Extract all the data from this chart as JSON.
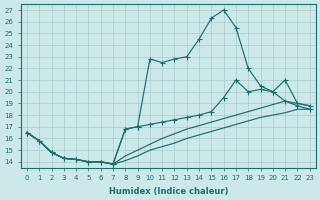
{
  "xlabel": "Humidex (Indice chaleur)",
  "bg_color": "#cce8e8",
  "grid_color": "#aacccc",
  "line_color": "#1a6e6e",
  "xlim": [
    -0.5,
    23.5
  ],
  "ylim": [
    13.5,
    27.5
  ],
  "xticks": [
    0,
    1,
    2,
    3,
    4,
    5,
    6,
    7,
    8,
    9,
    10,
    11,
    12,
    13,
    14,
    15,
    16,
    17,
    18,
    19,
    20,
    21,
    22,
    23
  ],
  "yticks": [
    14,
    15,
    16,
    17,
    18,
    19,
    20,
    21,
    22,
    23,
    24,
    25,
    26,
    27
  ],
  "line1_x": [
    0,
    1,
    2,
    3,
    4,
    5,
    6,
    7,
    8,
    9,
    10,
    11,
    12,
    13,
    14,
    15,
    16,
    17,
    18,
    19,
    20,
    21,
    22,
    23
  ],
  "line1_y": [
    16.5,
    15.8,
    14.8,
    14.3,
    14.2,
    14.0,
    14.0,
    13.8,
    16.8,
    17.0,
    22.8,
    22.5,
    22.8,
    23.0,
    24.5,
    26.3,
    27.0,
    25.5,
    22.0,
    20.5,
    20.0,
    21.0,
    19.0,
    18.8
  ],
  "line2_x": [
    0,
    1,
    2,
    3,
    4,
    5,
    6,
    7,
    8,
    9,
    10,
    11,
    12,
    13,
    14,
    15,
    16,
    17,
    18,
    19,
    20,
    21,
    22,
    23
  ],
  "line2_y": [
    16.5,
    15.8,
    14.8,
    14.3,
    14.2,
    14.0,
    14.0,
    13.8,
    16.8,
    17.0,
    17.2,
    17.4,
    17.6,
    17.8,
    18.0,
    18.3,
    19.5,
    21.0,
    20.0,
    20.2,
    20.0,
    19.2,
    18.8,
    18.5
  ],
  "line3_x": [
    0,
    1,
    2,
    3,
    4,
    5,
    6,
    7,
    8,
    9,
    10,
    11,
    12,
    13,
    14,
    15,
    16,
    17,
    18,
    19,
    20,
    21,
    22,
    23
  ],
  "line3_y": [
    16.5,
    15.8,
    14.8,
    14.3,
    14.2,
    14.0,
    14.0,
    13.8,
    14.1,
    14.5,
    15.0,
    15.3,
    15.6,
    16.0,
    16.3,
    16.6,
    16.9,
    17.2,
    17.5,
    17.8,
    18.0,
    18.2,
    18.5,
    18.5
  ],
  "line4_x": [
    0,
    1,
    2,
    3,
    4,
    5,
    6,
    7,
    8,
    9,
    10,
    11,
    12,
    13,
    14,
    15,
    16,
    17,
    18,
    19,
    20,
    21,
    22,
    23
  ],
  "line4_y": [
    16.5,
    15.8,
    14.8,
    14.3,
    14.2,
    14.0,
    14.0,
    13.8,
    14.5,
    15.0,
    15.5,
    16.0,
    16.4,
    16.8,
    17.1,
    17.4,
    17.7,
    18.0,
    18.3,
    18.6,
    18.9,
    19.2,
    19.0,
    18.8
  ]
}
